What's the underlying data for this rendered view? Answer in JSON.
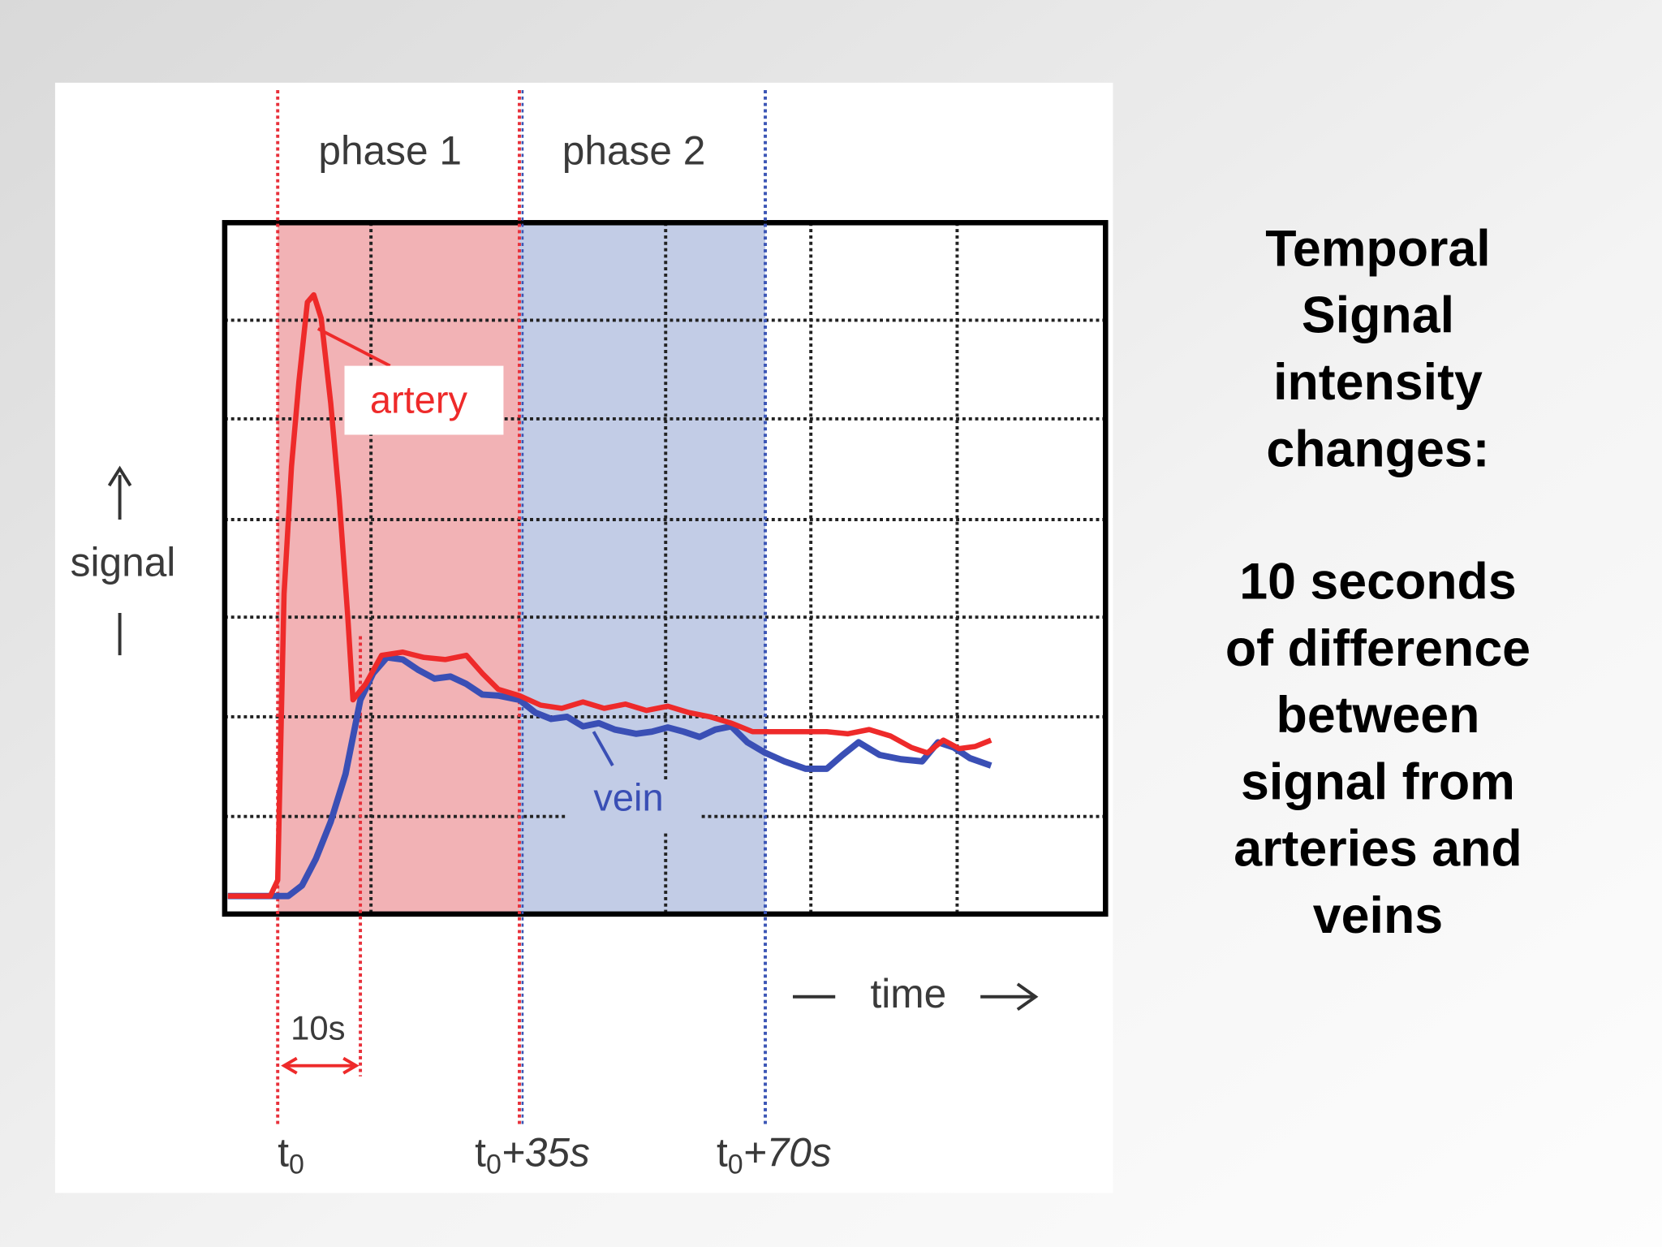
{
  "figure": {
    "phase_labels": [
      "phase 1",
      "phase 2"
    ],
    "curve_labels": {
      "artery": "artery",
      "vein": "vein"
    },
    "axis_labels": {
      "y": "signal",
      "x": "time"
    },
    "interval_label": "10s",
    "time_markers": [
      {
        "base": "t",
        "sub": "0",
        "suffix": ""
      },
      {
        "base": "t",
        "sub": "0",
        "suffix": "+35s"
      },
      {
        "base": "t",
        "sub": "0",
        "suffix": "+70s"
      }
    ]
  },
  "side_text": {
    "heading_lines": [
      "Temporal",
      "Signal",
      "intensity",
      "changes:"
    ],
    "body_lines": [
      "10 seconds",
      "of difference",
      "between",
      "signal from",
      "arteries and",
      "veins"
    ]
  }
}
